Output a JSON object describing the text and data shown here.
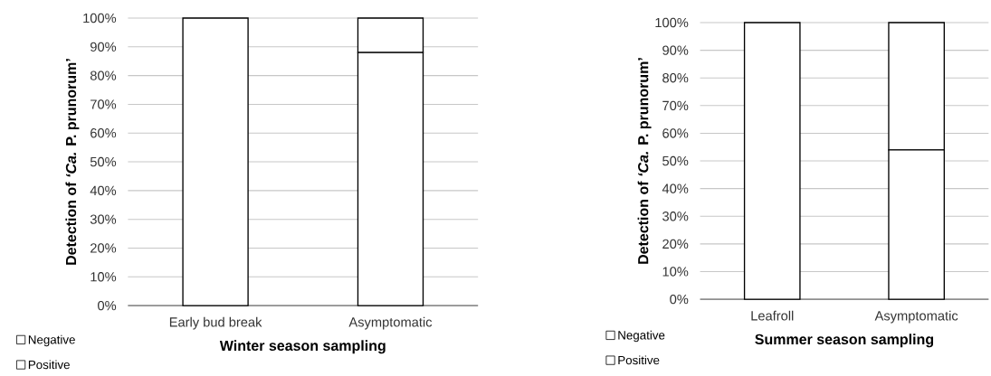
{
  "chart_data": [
    {
      "type": "bar",
      "stacked": true,
      "categories": [
        "Early bud break",
        "Asymptomatic"
      ],
      "series": [
        {
          "name": "Positive",
          "color": "#ffffff",
          "values": [
            100,
            88
          ]
        },
        {
          "name": "Negative",
          "color": "#ffffff",
          "values": [
            0,
            12
          ]
        }
      ],
      "ylim": [
        0,
        100
      ],
      "yticks": [
        {
          "value": 0,
          "label": "0%"
        },
        {
          "value": 10,
          "label": "10%"
        },
        {
          "value": 20,
          "label": "20%"
        },
        {
          "value": 30,
          "label": "30%"
        },
        {
          "value": 40,
          "label": "40%"
        },
        {
          "value": 50,
          "label": "50%"
        },
        {
          "value": 60,
          "label": "60%"
        },
        {
          "value": 70,
          "label": "70%"
        },
        {
          "value": 80,
          "label": "80%"
        },
        {
          "value": 90,
          "label": "90%"
        },
        {
          "value": 100,
          "label": "100%"
        }
      ],
      "xlabel": "Winter season sampling",
      "ylabel": "Detection of *‘Ca.* P. prunorum’",
      "grid": "y",
      "legend": "bottom left"
    },
    {
      "type": "bar",
      "stacked": true,
      "categories": [
        "Leafroll",
        "Asymptomatic"
      ],
      "series": [
        {
          "name": "Positive",
          "color": "#ffffff",
          "values": [
            100,
            54
          ]
        },
        {
          "name": "Negative",
          "color": "#ffffff",
          "values": [
            0,
            46
          ]
        }
      ],
      "ylim": [
        0,
        100
      ],
      "yticks": [
        {
          "value": 0,
          "label": "0%"
        },
        {
          "value": 10,
          "label": "10%"
        },
        {
          "value": 20,
          "label": "20%"
        },
        {
          "value": 30,
          "label": "30%"
        },
        {
          "value": 40,
          "label": "40%"
        },
        {
          "value": 50,
          "label": "50%"
        },
        {
          "value": 60,
          "label": "60%"
        },
        {
          "value": 70,
          "label": "70%"
        },
        {
          "value": 80,
          "label": "80%"
        },
        {
          "value": 90,
          "label": "90%"
        },
        {
          "value": 100,
          "label": "100%"
        }
      ],
      "xlabel": "Summer season sampling",
      "ylabel": "Detection of *‘Ca.* P. prunorum’",
      "grid": "y",
      "legend": "bottom left"
    }
  ]
}
